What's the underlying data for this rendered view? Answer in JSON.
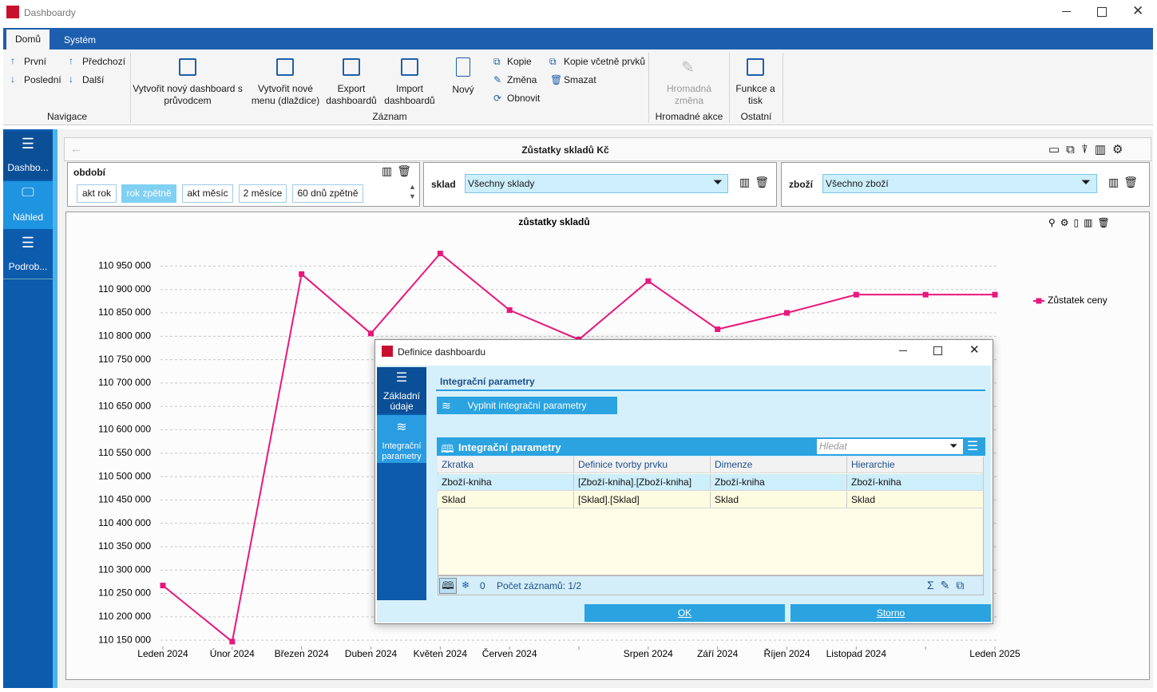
{
  "window": {
    "title": "Dashboardy"
  },
  "ribbon": {
    "tabs": [
      "Domů",
      "Systém"
    ],
    "groups": [
      {
        "label": "Navigace",
        "items": [
          "První",
          "Poslední",
          "Předchozí",
          "Další"
        ]
      },
      {
        "label": "Záznam",
        "items": [
          "Vytvořit nový dashboard s průvodcem",
          "Vytvořit nové menu (dlaždice)",
          "Export dashboardů",
          "Import dashboardů",
          "Nový",
          "Kopie",
          "Změna",
          "Obnovit",
          "Kopie včetně prvků",
          "Smazat"
        ]
      },
      {
        "label": "Hromadné akce",
        "items": [
          "Hromadná změna"
        ]
      },
      {
        "label": "Ostatní",
        "items": [
          "Funkce a tisk"
        ]
      }
    ]
  },
  "sidebar": [
    "Dashbo...",
    "Náhled",
    "Podrob..."
  ],
  "dashboard": {
    "title": "Zůstatky skladů Kč",
    "filters": [
      {
        "label": "období",
        "options": [
          "akt rok",
          "rok zpětně",
          "akt měsíc",
          "2 měsíce",
          "60 dnů zpětně"
        ]
      },
      {
        "label": "sklad",
        "value": "Všechny sklady"
      },
      {
        "label": "zboží",
        "value": "Všechno zboží"
      }
    ]
  },
  "chart_data": {
    "type": "line",
    "title": "zůstatky skladů",
    "categories": [
      "Leden 2024",
      "Únor 2024",
      "Březen 2024",
      "Duben 2024",
      "Květen 2024",
      "Červen 2024",
      null,
      "Srpen 2024",
      "Září 2024",
      "Říjen 2024",
      "Listopad 2024",
      null,
      "Leden 2025"
    ],
    "series": [
      {
        "name": "Zůstatek ceny",
        "color": "#e8177d",
        "values": [
          110267000,
          110147000,
          110933000,
          110806000,
          110977000,
          110856000,
          110793000,
          110918000,
          110815000,
          110850000,
          110889000,
          110889000,
          110889000
        ]
      }
    ],
    "ylim": [
      110140000,
      110990000
    ],
    "yticks": [
      {
        "value": 110150000,
        "label": "110 150 000"
      },
      {
        "value": 110200000,
        "label": "110 200 000"
      },
      {
        "value": 110250000,
        "label": "110 250 000"
      },
      {
        "value": 110300000,
        "label": "110 300 000"
      },
      {
        "value": 110350000,
        "label": "110 350 000"
      },
      {
        "value": 110400000,
        "label": "110 400 000"
      },
      {
        "value": 110450000,
        "label": "110 450 000"
      },
      {
        "value": 110500000,
        "label": "110 500 000"
      },
      {
        "value": 110550000,
        "label": "110 550 000"
      },
      {
        "value": 110600000,
        "label": "110 600 000"
      },
      {
        "value": 110650000,
        "label": "110 650 000"
      },
      {
        "value": 110700000,
        "label": "110 700 000"
      },
      {
        "value": 110750000,
        "label": "110 750 000"
      },
      {
        "value": 110800000,
        "label": "110 800 000"
      },
      {
        "value": 110850000,
        "label": "110 850 000"
      },
      {
        "value": 110900000,
        "label": "110 900 000"
      },
      {
        "value": 110950000,
        "label": "110 950 000"
      }
    ],
    "grid": true,
    "legend": "right"
  },
  "dialog": {
    "title": "Definice dashboardu",
    "nav": [
      "Základní údaje",
      "Integrační parametry"
    ],
    "heading": "Integrační parametry",
    "fill_button": "Vyplnit integrační parametry",
    "grid": {
      "title": "Integrační parametry",
      "search": "Hledat",
      "columns": [
        "Zkratka",
        "Definice tvorby prvku",
        "Dimenze",
        "Hierarchie"
      ],
      "rows": [
        [
          "Zboží-kniha",
          "[Zboží-kniha].[Zboží-kniha]",
          "Zboží-kniha",
          "Zboží-kniha"
        ],
        [
          "Sklad",
          "[Sklad].[Sklad]",
          "Sklad",
          "Sklad"
        ]
      ],
      "filter_count": "0",
      "record_count": "Počet záznamů: 1/2"
    },
    "buttons": [
      "OK",
      "Storno"
    ]
  }
}
